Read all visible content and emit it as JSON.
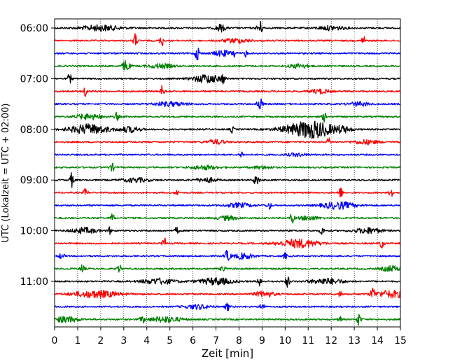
{
  "chart_data": {
    "type": "line",
    "title": "",
    "xlabel": "Zeit  [min]",
    "ylabel": "UTC (Lokalzeit = UTC + 02:00)",
    "xlim": [
      0,
      15
    ],
    "x_ticks": [
      "0",
      "1",
      "2",
      "3",
      "4",
      "5",
      "6",
      "7",
      "8",
      "9",
      "10",
      "11",
      "12",
      "13",
      "14",
      "15"
    ],
    "y_ticks": [
      "06:00",
      "07:00",
      "08:00",
      "09:00",
      "10:00",
      "11:00"
    ],
    "grid": "vertical dotted lines at each minute",
    "legend": "none",
    "colors": [
      "#000000",
      "#ff0000",
      "#0000ff",
      "#008000"
    ],
    "trace_interval_min": 15,
    "traces": [
      {
        "start": "06:00",
        "color": "#000000",
        "events": [
          [
            2.0,
            0.6,
            4
          ],
          [
            7.2,
            0.15,
            5
          ],
          [
            8.9,
            0.08,
            10
          ],
          [
            12.0,
            0.4,
            3
          ]
        ]
      },
      {
        "start": "06:15",
        "color": "#ff0000",
        "events": [
          [
            3.5,
            0.06,
            10
          ],
          [
            4.65,
            0.06,
            8
          ],
          [
            7.9,
            0.4,
            3
          ],
          [
            13.4,
            0.06,
            7
          ]
        ]
      },
      {
        "start": "06:30",
        "color": "#0000ff",
        "events": [
          [
            6.2,
            0.08,
            9
          ],
          [
            7.3,
            0.3,
            4
          ],
          [
            7.8,
            0.05,
            6
          ],
          [
            8.3,
            0.05,
            5
          ]
        ]
      },
      {
        "start": "06:45",
        "color": "#008000",
        "events": [
          [
            3.1,
            0.1,
            9
          ],
          [
            4.6,
            0.4,
            3
          ],
          [
            10.6,
            0.3,
            3
          ]
        ]
      },
      {
        "start": "07:00",
        "color": "#000000",
        "events": [
          [
            0.65,
            0.06,
            7
          ],
          [
            6.6,
            0.4,
            6
          ],
          [
            7.3,
            0.06,
            6
          ]
        ]
      },
      {
        "start": "07:15",
        "color": "#ff0000",
        "events": [
          [
            1.35,
            0.06,
            7
          ],
          [
            4.65,
            0.06,
            8
          ],
          [
            11.5,
            0.3,
            3
          ]
        ]
      },
      {
        "start": "07:30",
        "color": "#0000ff",
        "events": [
          [
            5.0,
            0.5,
            3
          ],
          [
            8.9,
            0.08,
            9
          ],
          [
            13.2,
            0.3,
            3
          ]
        ]
      },
      {
        "start": "07:45",
        "color": "#008000",
        "events": [
          [
            1.5,
            0.4,
            4
          ],
          [
            2.7,
            0.06,
            6
          ],
          [
            11.7,
            0.06,
            7
          ]
        ]
      },
      {
        "start": "08:00",
        "color": "#000000",
        "events": [
          [
            1.5,
            0.6,
            7
          ],
          [
            3.3,
            0.3,
            4
          ],
          [
            7.7,
            0.05,
            5
          ],
          [
            10.6,
            0.6,
            7
          ],
          [
            11.4,
            0.5,
            9
          ],
          [
            12.5,
            0.3,
            4
          ]
        ]
      },
      {
        "start": "08:15",
        "color": "#ff0000",
        "events": [
          [
            7.0,
            0.3,
            3
          ],
          [
            11.9,
            0.05,
            7
          ],
          [
            13.5,
            0.4,
            3
          ]
        ]
      },
      {
        "start": "08:30",
        "color": "#0000ff",
        "events": [
          [
            8.1,
            0.05,
            5
          ],
          [
            10.5,
            0.3,
            2
          ]
        ]
      },
      {
        "start": "08:45",
        "color": "#008000",
        "events": [
          [
            2.5,
            0.08,
            5
          ],
          [
            6.5,
            0.4,
            3
          ],
          [
            9.0,
            0.3,
            2
          ]
        ]
      },
      {
        "start": "09:00",
        "color": "#000000",
        "events": [
          [
            0.75,
            0.06,
            10
          ],
          [
            3.5,
            0.4,
            3
          ],
          [
            6.6,
            0.3,
            3
          ],
          [
            8.75,
            0.08,
            8
          ]
        ]
      },
      {
        "start": "09:15",
        "color": "#ff0000",
        "events": [
          [
            1.35,
            0.06,
            6
          ],
          [
            5.3,
            0.05,
            5
          ],
          [
            12.4,
            0.06,
            8
          ],
          [
            14.6,
            0.06,
            7
          ]
        ]
      },
      {
        "start": "09:30",
        "color": "#0000ff",
        "events": [
          [
            8.0,
            0.4,
            3
          ],
          [
            9.3,
            0.06,
            6
          ],
          [
            12.3,
            0.5,
            5
          ]
        ]
      },
      {
        "start": "09:45",
        "color": "#008000",
        "events": [
          [
            2.5,
            0.06,
            6
          ],
          [
            7.5,
            0.3,
            3
          ],
          [
            10.3,
            0.06,
            7
          ],
          [
            11.0,
            0.3,
            3
          ]
        ]
      },
      {
        "start": "10:00",
        "color": "#000000",
        "events": [
          [
            1.3,
            0.4,
            4
          ],
          [
            2.4,
            0.05,
            5
          ],
          [
            5.3,
            0.06,
            5
          ],
          [
            11.6,
            0.06,
            6
          ],
          [
            13.6,
            0.4,
            4
          ]
        ]
      },
      {
        "start": "10:15",
        "color": "#ff0000",
        "events": [
          [
            4.75,
            0.05,
            10
          ],
          [
            10.6,
            0.6,
            6
          ],
          [
            14.2,
            0.06,
            7
          ]
        ]
      },
      {
        "start": "10:30",
        "color": "#0000ff",
        "events": [
          [
            0.3,
            0.08,
            4
          ],
          [
            7.5,
            0.08,
            8
          ],
          [
            8.2,
            0.3,
            4
          ],
          [
            10.0,
            0.05,
            5
          ]
        ]
      },
      {
        "start": "10:45",
        "color": "#008000",
        "events": [
          [
            1.2,
            0.06,
            7
          ],
          [
            2.8,
            0.06,
            6
          ],
          [
            7.3,
            0.06,
            6
          ],
          [
            14.6,
            0.3,
            4
          ]
        ]
      },
      {
        "start": "11:00",
        "color": "#000000",
        "events": [
          [
            4.5,
            0.5,
            4
          ],
          [
            7.0,
            0.5,
            5
          ],
          [
            8.9,
            0.06,
            7
          ],
          [
            10.1,
            0.06,
            8
          ],
          [
            11.8,
            0.5,
            4
          ]
        ]
      },
      {
        "start": "11:15",
        "color": "#ff0000",
        "events": [
          [
            1.8,
            0.7,
            5
          ],
          [
            9.1,
            0.3,
            4
          ],
          [
            12.4,
            0.05,
            5
          ],
          [
            13.8,
            0.06,
            9
          ],
          [
            14.6,
            0.5,
            5
          ]
        ]
      },
      {
        "start": "11:30",
        "color": "#0000ff",
        "events": [
          [
            7.5,
            0.06,
            6
          ],
          [
            9.0,
            0.06,
            8
          ],
          [
            6.2,
            0.4,
            3
          ]
        ]
      },
      {
        "start": "11:45",
        "color": "#008000",
        "events": [
          [
            0.5,
            0.4,
            4
          ],
          [
            3.8,
            0.06,
            6
          ],
          [
            4.8,
            0.5,
            4
          ],
          [
            12.4,
            0.05,
            5
          ],
          [
            13.2,
            0.06,
            9
          ]
        ]
      }
    ]
  }
}
